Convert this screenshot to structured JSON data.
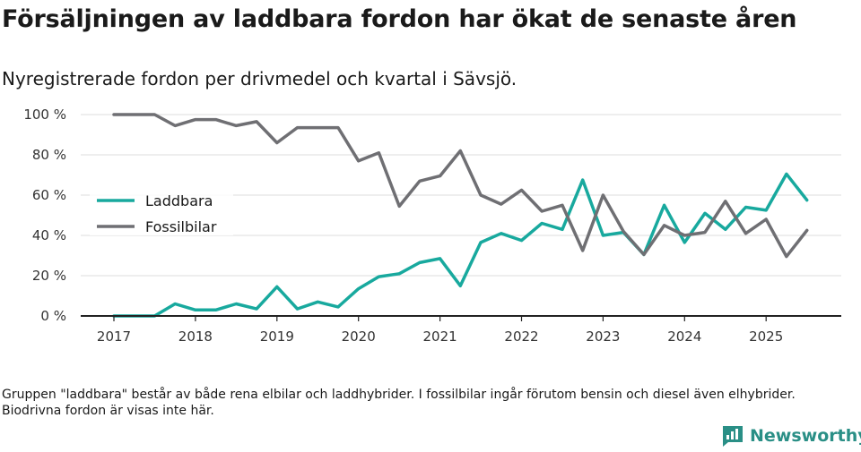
{
  "title": "Försäljningen av laddbara fordon har ökat de senaste åren",
  "subtitle": "Nyregistrerade fordon per drivmedel och kvartal i Sävsjö.",
  "footnote": "Gruppen \"laddbara\" består av både rena elbilar och laddhybrider. I fossilbilar ingår förutom bensin och diesel även elhybrider. Biodrivna fordon är visas inte här.",
  "brand": "Newsworthy",
  "colors": {
    "laddbara": "#18a99e",
    "fossil": "#6f6f73",
    "grid": "#dcdcdc",
    "axis": "#222222",
    "brand": "#2a8f86"
  },
  "chart_data": {
    "type": "line",
    "title": "Försäljningen av laddbara fordon har ökat de senaste åren",
    "xlabel": "",
    "ylabel": "",
    "ylim": [
      0,
      100
    ],
    "yticks": [
      0,
      20,
      40,
      60,
      80,
      100
    ],
    "ytick_labels": [
      "0 %",
      "20 %",
      "40 %",
      "60 %",
      "80 %",
      "100 %"
    ],
    "xlim": [
      2017,
      2025.9
    ],
    "xticks": [
      2017,
      2018,
      2019,
      2020,
      2021,
      2022,
      2023,
      2024,
      2025
    ],
    "xtick_labels": [
      "2017",
      "2018",
      "2019",
      "2020",
      "2021",
      "2022",
      "2023",
      "2024",
      "2025"
    ],
    "legend_position": "left-middle",
    "x": [
      2017.0,
      2017.25,
      2017.5,
      2017.75,
      2018.0,
      2018.25,
      2018.5,
      2018.75,
      2019.0,
      2019.25,
      2019.5,
      2019.75,
      2020.0,
      2020.25,
      2020.5,
      2020.75,
      2021.0,
      2021.25,
      2021.5,
      2021.75,
      2022.0,
      2022.25,
      2022.5,
      2022.75,
      2023.0,
      2023.25,
      2023.5,
      2023.75,
      2024.0,
      2024.25,
      2024.5,
      2024.75,
      2025.0,
      2025.25,
      2025.5
    ],
    "series": [
      {
        "name": "Laddbara",
        "values": [
          0,
          0,
          0,
          6,
          3,
          3,
          6,
          3.5,
          14.5,
          3.5,
          7,
          4.5,
          13.5,
          19.5,
          21,
          26.5,
          28.5,
          15,
          36.5,
          41,
          37.5,
          46,
          43,
          67.5,
          40,
          41.5,
          30.5,
          55,
          36.5,
          51,
          43,
          54,
          52.5,
          70.5,
          57.5
        ]
      },
      {
        "name": "Fossilbilar",
        "values": [
          100,
          100,
          100,
          94.5,
          97.5,
          97.5,
          94.5,
          96.5,
          86,
          93.5,
          93.5,
          93.5,
          77,
          81,
          54.5,
          67,
          69.5,
          82,
          60,
          55.5,
          62.5,
          52,
          55,
          32.5,
          60,
          42,
          30.5,
          45,
          40,
          41.5,
          57,
          41,
          48,
          29.5,
          42.5
        ]
      }
    ]
  }
}
